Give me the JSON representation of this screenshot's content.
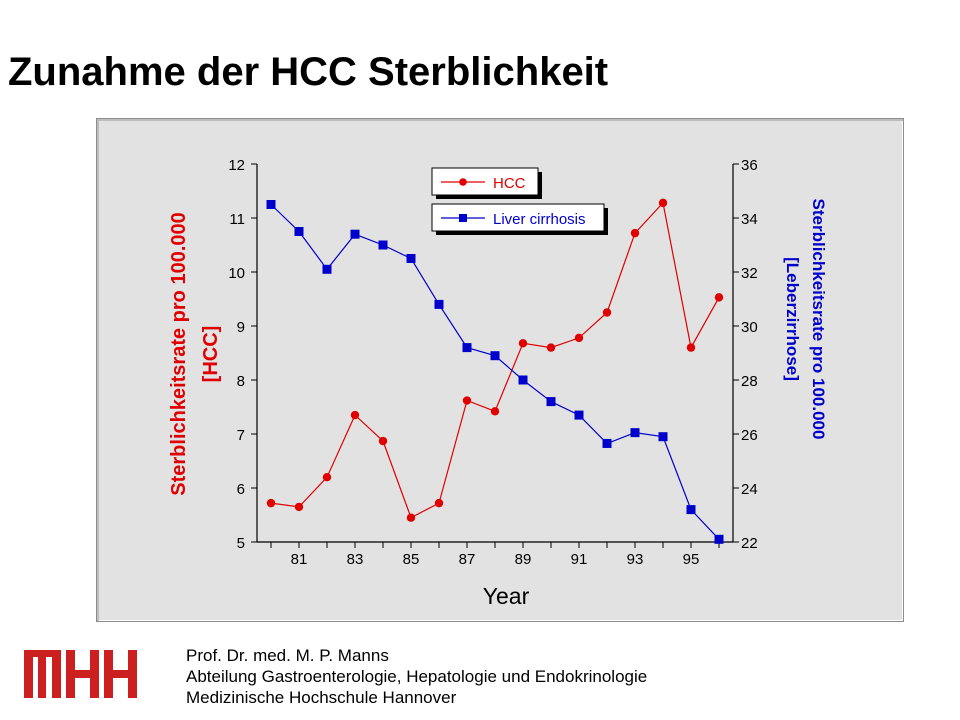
{
  "slide": {
    "title": "Zunahme der HCC Sterblichkeit"
  },
  "footer": {
    "author": "Prof. Dr. med. M. P. Manns",
    "department": "Abteilung Gastroenterologie, Hepatologie und Endokrinologie",
    "institution": "Medizinische Hochschule Hannover",
    "logo_text": "MHH"
  },
  "colors": {
    "hcc": "#e00000",
    "cirrhosis": "#0000cc",
    "panel": "#e2e2e2",
    "logo": "#cc1f1f"
  },
  "chart_data": {
    "type": "line",
    "xlabel": "Year",
    "ylabel_left_line1": "Sterblichkeitsrate pro 100.000",
    "ylabel_left_line2": "[HCC]",
    "ylabel_right_line1": "Sterblichkeitsrate pro 100.000",
    "ylabel_right_line2": "[Leberzirrhose]",
    "x": [
      80,
      81,
      82,
      83,
      84,
      85,
      86,
      87,
      88,
      89,
      90,
      91,
      92,
      93,
      94,
      95,
      96
    ],
    "x_tick_labels": [
      "81",
      "83",
      "85",
      "87",
      "89",
      "91",
      "93",
      "95"
    ],
    "x_tick_values": [
      81,
      83,
      85,
      87,
      89,
      91,
      93,
      95
    ],
    "xlim": [
      79.5,
      96.5
    ],
    "ylim_left": [
      5,
      12
    ],
    "ylim_right": [
      22,
      36
    ],
    "left_ticks": [
      5,
      6,
      7,
      8,
      9,
      10,
      11,
      12
    ],
    "right_ticks": [
      22,
      24,
      26,
      28,
      30,
      32,
      34,
      36
    ],
    "legend_position": "top-center",
    "series": [
      {
        "name": "HCC",
        "axis": "left",
        "marker": "circle",
        "values": [
          5.72,
          5.65,
          6.2,
          7.35,
          6.87,
          5.45,
          5.72,
          7.62,
          7.42,
          8.68,
          8.6,
          8.78,
          9.25,
          10.72,
          11.28,
          8.6,
          9.53
        ]
      },
      {
        "name": "Liver cirrhosis",
        "axis": "right",
        "marker": "square",
        "values": [
          34.5,
          33.5,
          32.1,
          33.4,
          33.0,
          32.5,
          30.8,
          29.2,
          28.9,
          28.0,
          27.2,
          26.7,
          25.65,
          26.05,
          25.9,
          23.2,
          22.1
        ]
      }
    ]
  }
}
